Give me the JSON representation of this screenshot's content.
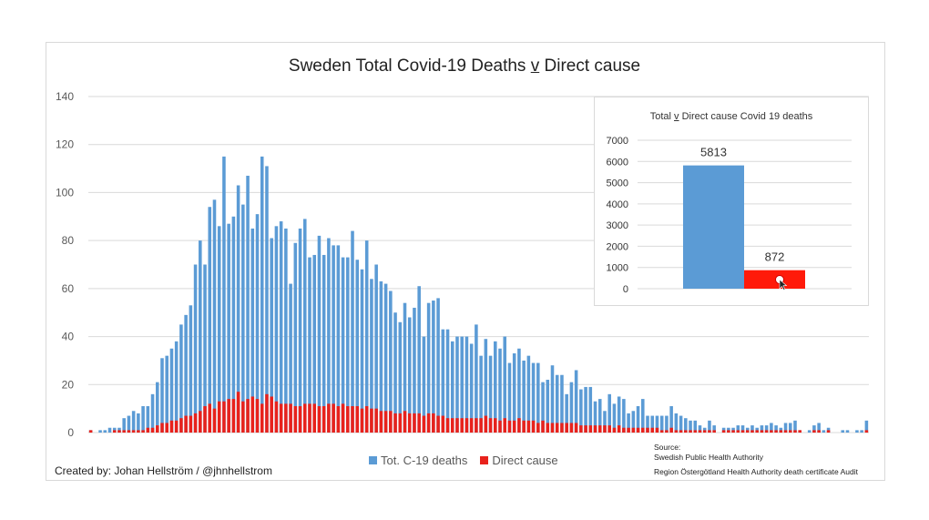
{
  "credit": "Created by: Johan Hellström / @jhnhellstrom",
  "source": {
    "label": "Source:",
    "line1": "Swedish Public Health Authority",
    "line2": "Region Östergötland Health Authority death certificate Audit"
  },
  "colors": {
    "total": "#5b9bd5",
    "direct": "#e8221c",
    "direct_inset": "#ff1a0a",
    "grid": "#d9d9d9"
  },
  "chart_data": [
    {
      "type": "bar",
      "title_parts": [
        "Sweden Total Covid-19 Deaths ",
        "v",
        " Direct cause"
      ],
      "ylim": [
        0,
        140
      ],
      "yticks": [
        0,
        20,
        40,
        60,
        80,
        100,
        120,
        140
      ],
      "grid": true,
      "legend_position": "bottom",
      "series": [
        {
          "name": "Tot. C-19 deaths",
          "values": [
            1,
            0,
            1,
            1,
            2,
            2,
            2,
            6,
            7,
            9,
            8,
            11,
            11,
            16,
            21,
            31,
            32,
            35,
            38,
            45,
            49,
            53,
            70,
            80,
            70,
            94,
            97,
            86,
            115,
            87,
            90,
            103,
            95,
            107,
            85,
            91,
            115,
            111,
            81,
            86,
            88,
            85,
            62,
            79,
            85,
            89,
            73,
            74,
            82,
            74,
            81,
            78,
            78,
            73,
            73,
            84,
            72,
            68,
            80,
            64,
            70,
            63,
            62,
            59,
            50,
            46,
            54,
            48,
            52,
            61,
            40,
            54,
            55,
            56,
            43,
            43,
            38,
            40,
            40,
            40,
            37,
            45,
            32,
            39,
            32,
            38,
            35,
            40,
            29,
            33,
            35,
            30,
            32,
            29,
            29,
            21,
            22,
            28,
            24,
            24,
            16,
            21,
            26,
            18,
            19,
            19,
            13,
            14,
            9,
            16,
            12,
            15,
            14,
            8,
            9,
            11,
            14,
            7,
            7,
            7,
            7,
            7,
            11,
            8,
            7,
            6,
            5,
            5,
            3,
            2,
            5,
            3,
            0,
            2,
            2,
            2,
            3,
            3,
            2,
            3,
            2,
            3,
            3,
            4,
            3,
            2,
            4,
            4,
            5,
            1,
            0,
            1,
            3,
            4,
            1,
            2,
            0,
            0,
            1,
            1,
            0,
            1,
            1,
            5
          ],
          "color": "#5b9bd5"
        },
        {
          "name": "Direct cause",
          "values": [
            1,
            0,
            0,
            0,
            0,
            1,
            1,
            1,
            1,
            1,
            1,
            1,
            2,
            2,
            3,
            4,
            4,
            5,
            5,
            6,
            7,
            7,
            8,
            9,
            11,
            12,
            10,
            13,
            13,
            14,
            14,
            17,
            13,
            14,
            15,
            14,
            12,
            16,
            15,
            13,
            12,
            12,
            12,
            11,
            11,
            12,
            12,
            12,
            11,
            11,
            12,
            12,
            11,
            12,
            11,
            11,
            11,
            10,
            11,
            10,
            10,
            9,
            9,
            9,
            8,
            8,
            9,
            8,
            8,
            8,
            7,
            8,
            8,
            7,
            7,
            6,
            6,
            6,
            6,
            6,
            6,
            6,
            6,
            7,
            6,
            6,
            5,
            6,
            5,
            5,
            6,
            5,
            5,
            5,
            4,
            5,
            4,
            4,
            4,
            4,
            4,
            4,
            4,
            3,
            3,
            3,
            3,
            3,
            3,
            3,
            2,
            3,
            2,
            2,
            2,
            2,
            2,
            2,
            2,
            2,
            1,
            1,
            2,
            1,
            1,
            1,
            1,
            1,
            1,
            1,
            1,
            1,
            0,
            1,
            1,
            1,
            1,
            1,
            1,
            1,
            1,
            1,
            1,
            1,
            1,
            1,
            1,
            1,
            1,
            1,
            0,
            0,
            1,
            1,
            0,
            1,
            0,
            0,
            0,
            0,
            0,
            0,
            0,
            1
          ],
          "color": "#e8221c"
        }
      ]
    },
    {
      "type": "bar",
      "title_parts": [
        "Total ",
        "v",
        " Direct cause Covid 19 deaths"
      ],
      "ylim": [
        0,
        7000
      ],
      "yticks": [
        0,
        1000,
        2000,
        3000,
        4000,
        5000,
        6000,
        7000
      ],
      "grid": true,
      "series": [
        {
          "name": "Total",
          "values": [
            5813
          ],
          "label": "5813",
          "color": "#5b9bd5"
        },
        {
          "name": "Direct cause",
          "values": [
            872
          ],
          "label": "872",
          "color": "#ff1a0a"
        }
      ]
    }
  ]
}
